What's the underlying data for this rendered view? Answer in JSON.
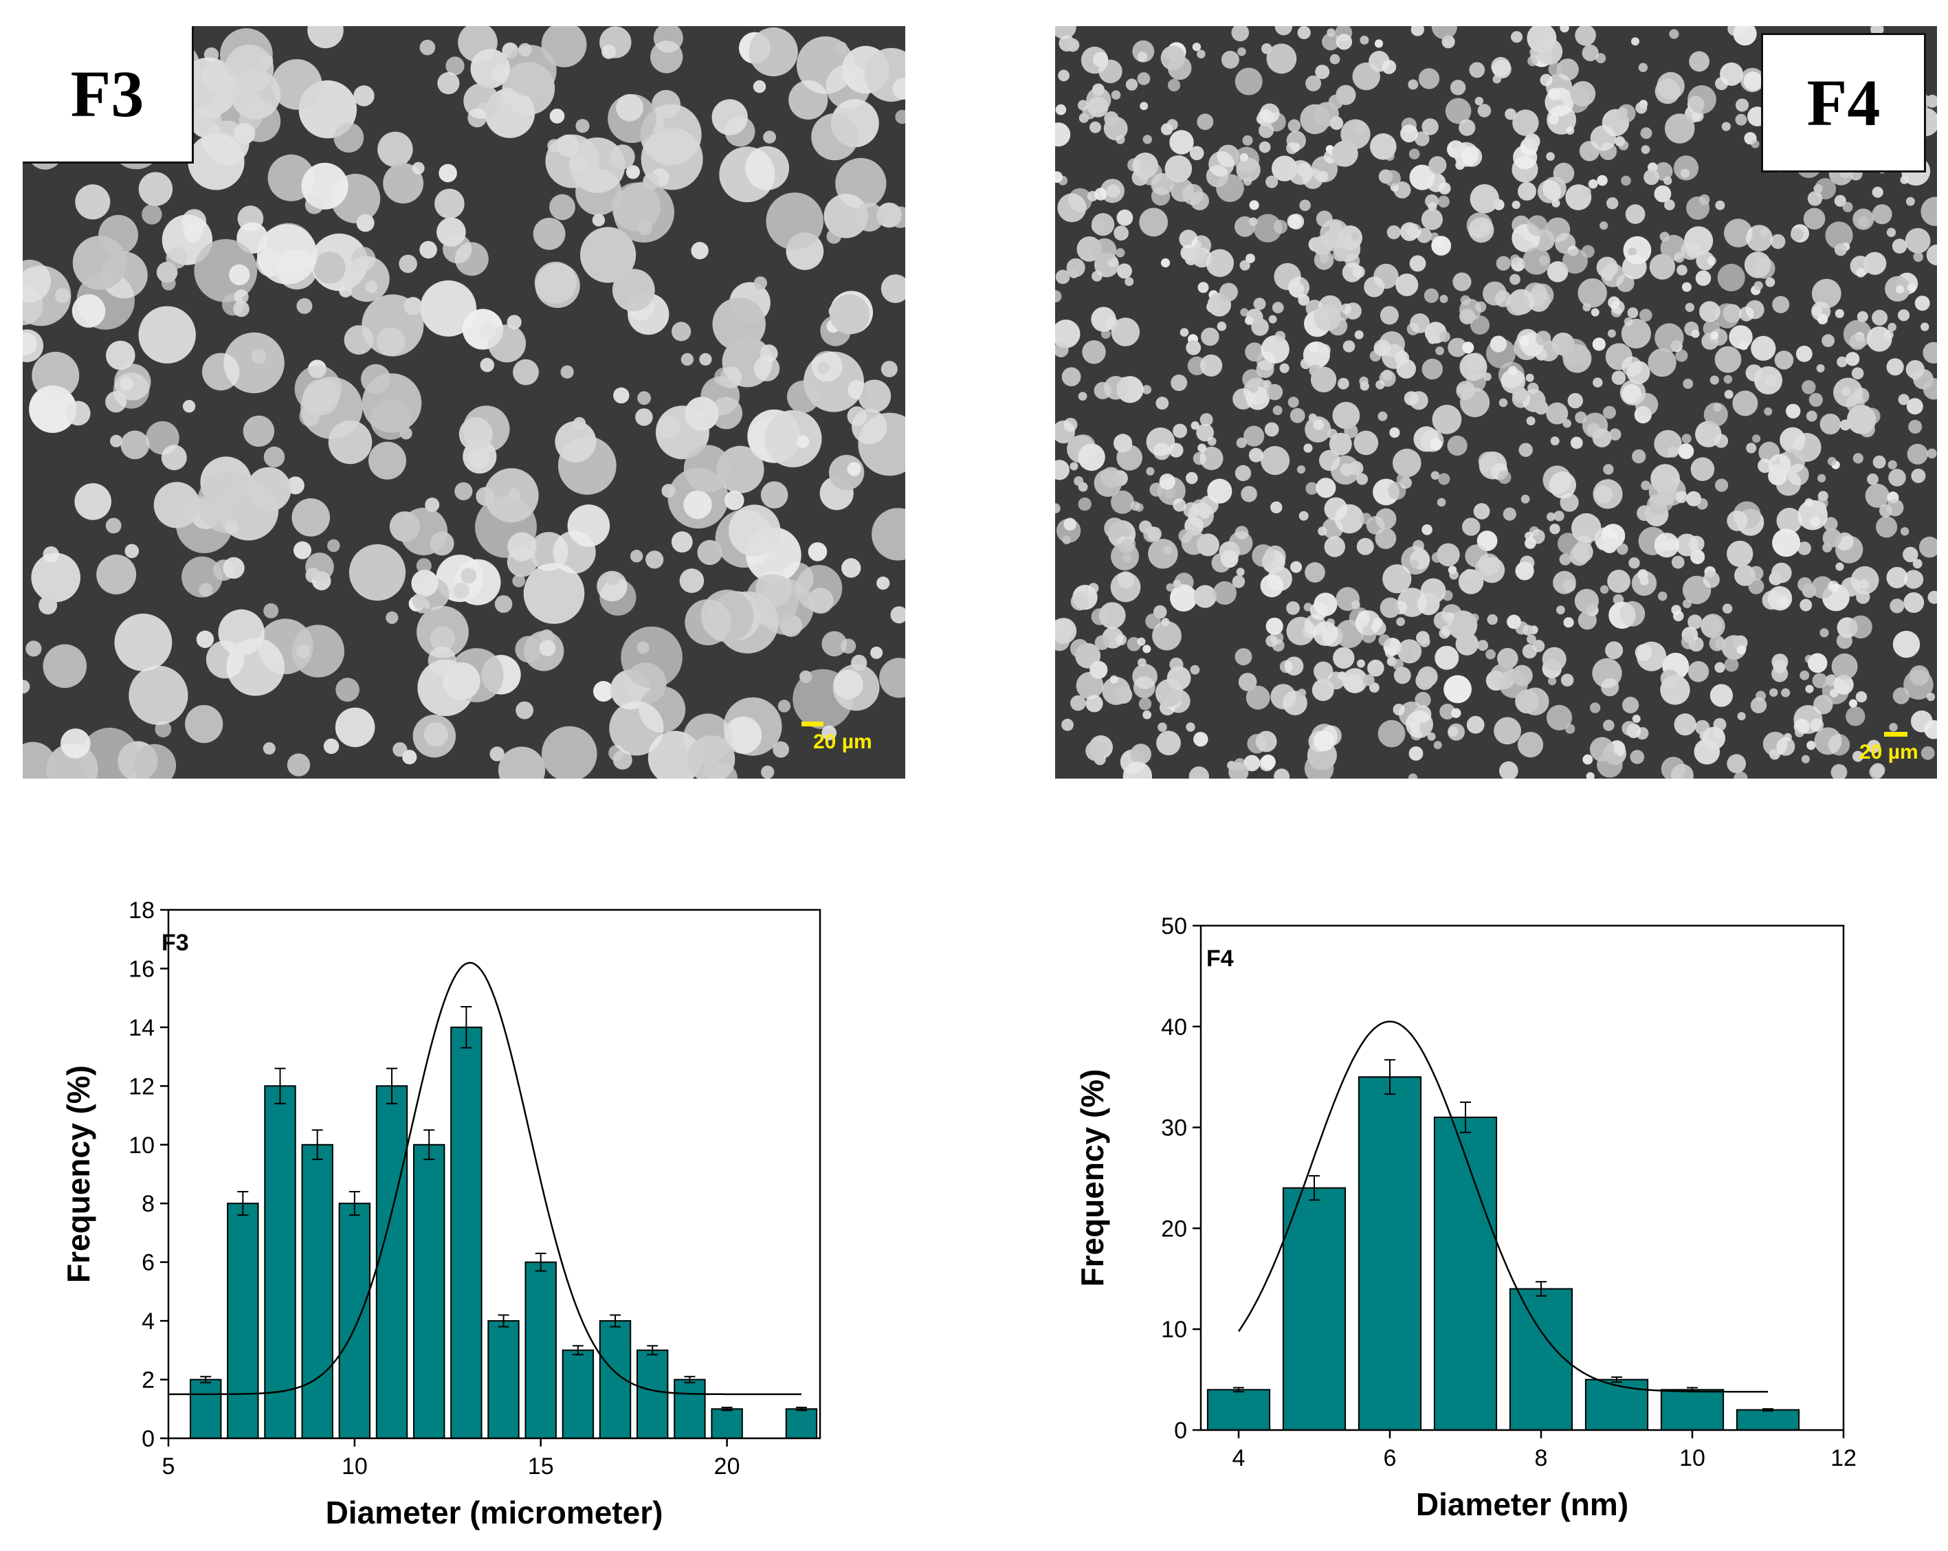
{
  "panels": [
    {
      "label": "F3",
      "scale_text": "20 µm"
    },
    {
      "label": "F4",
      "scale_text": "20 µm"
    }
  ],
  "colors": {
    "bar": "#008080",
    "scale": "#ffeb00"
  },
  "chart_data": [
    {
      "type": "bar",
      "panel_label": "F3",
      "xlabel": "Diameter (micrometer)",
      "ylabel": "Frequency (%)",
      "xlim": [
        5,
        22.5
      ],
      "ylim": [
        0,
        18
      ],
      "xticks": [
        5,
        10,
        15,
        20
      ],
      "yticks": [
        0,
        2,
        4,
        6,
        8,
        10,
        12,
        14,
        16,
        18
      ],
      "x": [
        6,
        7,
        8,
        9,
        10,
        11,
        12,
        13,
        14,
        15,
        16,
        17,
        18,
        19,
        20,
        22
      ],
      "values": [
        2,
        8,
        12,
        10,
        8,
        12,
        10,
        14,
        4,
        6,
        3,
        4,
        3,
        2,
        1,
        1
      ],
      "errors": [
        0.1,
        0.4,
        0.6,
        0.5,
        0.4,
        0.6,
        0.5,
        0.7,
        0.2,
        0.3,
        0.15,
        0.2,
        0.15,
        0.1,
        0.05,
        0.05
      ],
      "fit": {
        "type": "gaussian",
        "baseline": 1.5,
        "amplitude": 14.7,
        "center": 13.1,
        "sigma": 1.6,
        "x_range": [
          5,
          22
        ]
      }
    },
    {
      "type": "bar",
      "panel_label": "F4",
      "xlabel": "Diameter (nm)",
      "ylabel": "Frequency (%)",
      "xlim": [
        3.5,
        12
      ],
      "ylim": [
        0,
        50
      ],
      "xticks": [
        4,
        6,
        8,
        10,
        12
      ],
      "yticks": [
        0,
        10,
        20,
        30,
        40,
        50
      ],
      "x": [
        4,
        5,
        6,
        7,
        8,
        9,
        10,
        11
      ],
      "values": [
        4,
        24,
        35,
        31,
        14,
        5,
        4,
        2
      ],
      "errors": [
        0.2,
        1.2,
        1.7,
        1.5,
        0.7,
        0.25,
        0.2,
        0.1
      ],
      "fit": {
        "type": "gaussian",
        "baseline": 3.8,
        "amplitude": 36.7,
        "center": 6.0,
        "sigma": 1.05,
        "x_range": [
          4,
          11
        ]
      }
    }
  ]
}
